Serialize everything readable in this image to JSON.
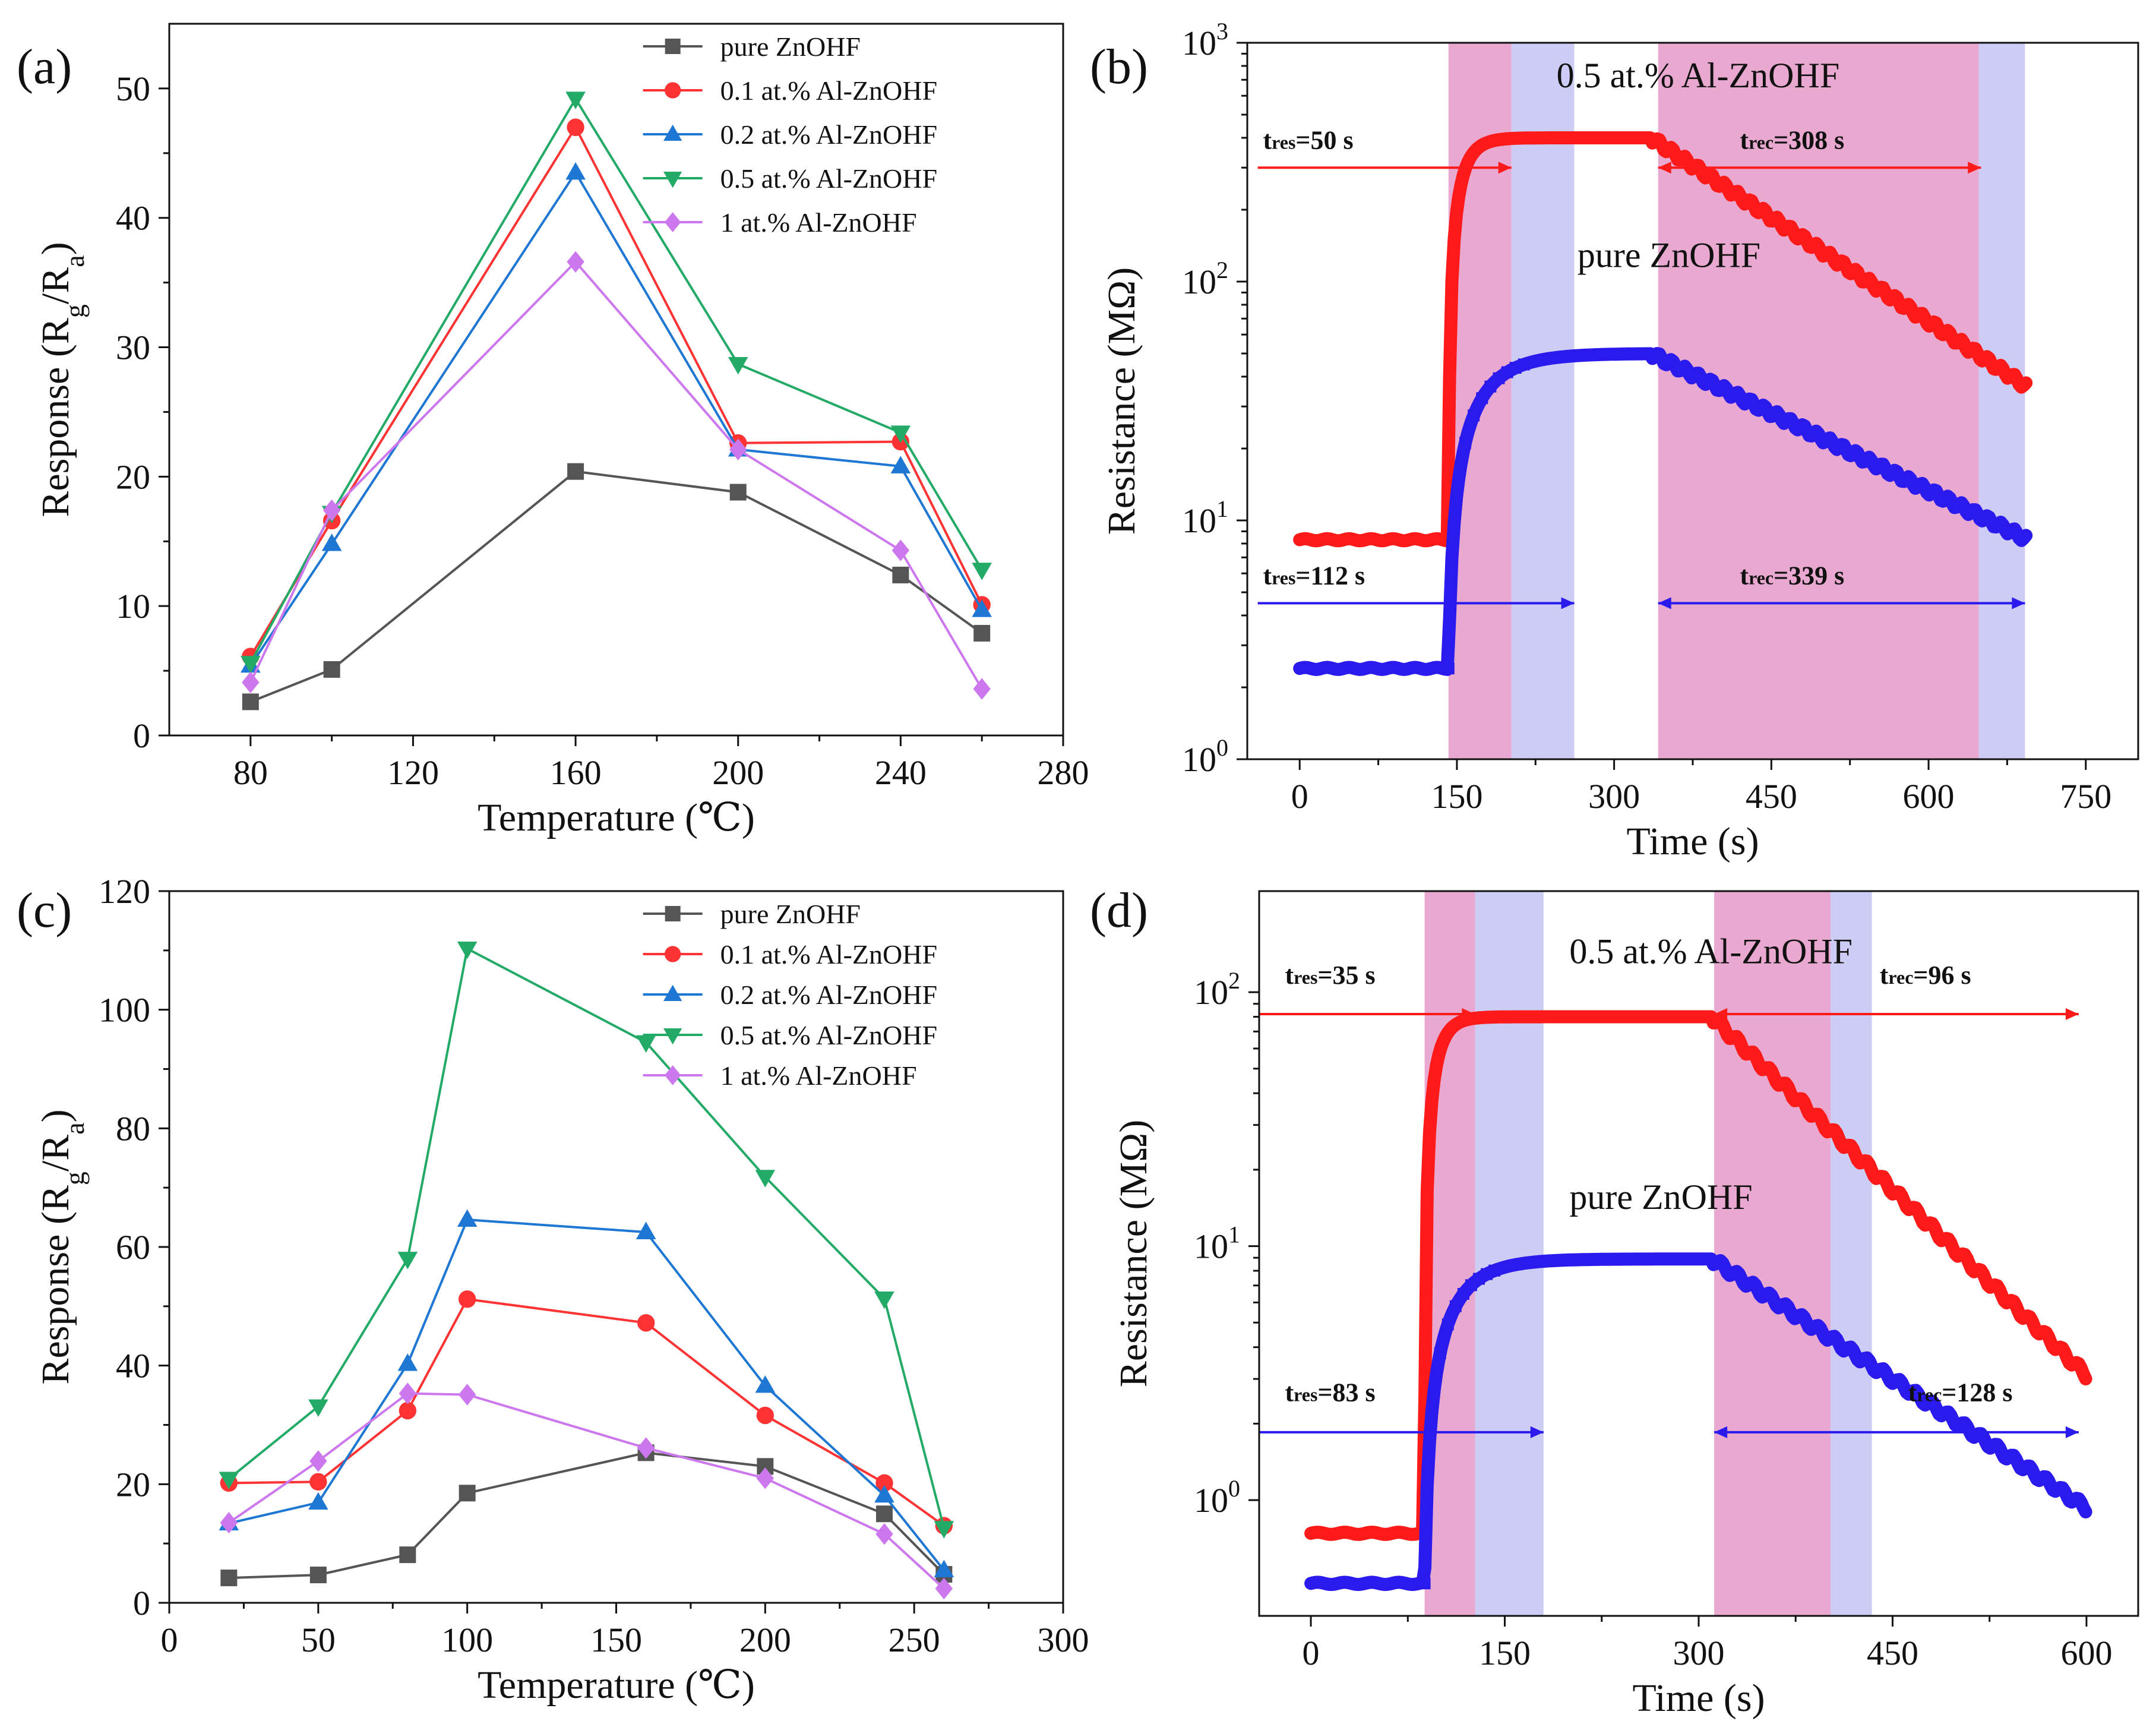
{
  "figure": {
    "panels": [
      {
        "id": "a",
        "label": "(a)"
      },
      {
        "id": "b",
        "label": "(b)"
      },
      {
        "id": "c",
        "label": "(c)"
      },
      {
        "id": "d",
        "label": "(d)"
      }
    ]
  },
  "colors": {
    "pure": "#555555",
    "al01": "#ff3333",
    "al02": "#1f77d4",
    "al05": "#22aa66",
    "al1": "#cc77ee",
    "red_curve": "#ff1a1a",
    "blue_curve": "#2a1aee",
    "pink_band": "#e8a8d0",
    "lavender_band": "#ccccf5"
  },
  "chart_data": [
    {
      "id": "a",
      "type": "line",
      "xlabel": "Temperature (℃)",
      "ylabel": "Response (Rg/Ra)",
      "ylabel_parts": {
        "main": "Response (R",
        "sub1": "g",
        "mid": "/R",
        "sub2": "a",
        "end": ")"
      },
      "xlim": [
        60,
        280
      ],
      "ylim": [
        0,
        55
      ],
      "xticks": [
        80,
        120,
        160,
        200,
        240,
        280
      ],
      "yticks": [
        0,
        10,
        20,
        30,
        40,
        50
      ],
      "grid": false,
      "legend_position": "top-right",
      "x": [
        80,
        100,
        160,
        200,
        240,
        260
      ],
      "series": [
        {
          "name": "pure ZnOHF",
          "marker": "square",
          "color_key": "pure",
          "values": [
            2.6,
            5.1,
            20.4,
            18.8,
            12.4,
            7.9
          ]
        },
        {
          "name": "0.1 at.% Al-ZnOHF",
          "marker": "circle",
          "color_key": "al01",
          "values": [
            6.1,
            16.6,
            47.0,
            22.6,
            22.7,
            10.1
          ]
        },
        {
          "name": "0.2 at.% Al-ZnOHF",
          "marker": "triangle-up",
          "color_key": "al02",
          "values": [
            5.4,
            14.8,
            43.5,
            22.1,
            20.8,
            9.7
          ]
        },
        {
          "name": "0.5 at.% Al-ZnOHF",
          "marker": "triangle-down",
          "color_key": "al05",
          "values": [
            5.6,
            17.2,
            49.2,
            28.7,
            23.4,
            12.8
          ]
        },
        {
          "name": "1 at.% Al-ZnOHF",
          "marker": "diamond",
          "color_key": "al1",
          "values": [
            4.1,
            17.4,
            36.6,
            22.1,
            14.3,
            3.6
          ]
        }
      ]
    },
    {
      "id": "b",
      "type": "line",
      "xlabel": "Time (s)",
      "ylabel": "Resistance (MΩ)",
      "xlim": [
        -50,
        800
      ],
      "ylog": true,
      "ylim": [
        1,
        1000
      ],
      "xticks": [
        0,
        150,
        300,
        450,
        600,
        750
      ],
      "yticks": [
        1,
        10,
        100,
        1000
      ],
      "ytick_labels": [
        {
          "base": "10",
          "exp": "0"
        },
        {
          "base": "10",
          "exp": "1"
        },
        {
          "base": "10",
          "exp": "2"
        },
        {
          "base": "10",
          "exp": "3"
        }
      ],
      "grid": false,
      "bands": [
        {
          "x0": 142,
          "x1": 202,
          "color_key": "pink_band"
        },
        {
          "x0": 202,
          "x1": 262,
          "color_key": "lavender_band"
        },
        {
          "x0": 342,
          "x1": 648,
          "color_key": "pink_band"
        },
        {
          "x0": 648,
          "x1": 692,
          "color_key": "lavender_band"
        }
      ],
      "curves": [
        {
          "name": "0.5 at.% Al-ZnOHF",
          "color_key": "red_curve",
          "base": 8.3,
          "peak": 400,
          "x_on": 142,
          "x_off": 335,
          "x_end": 695,
          "end": 36,
          "tau_rise": 12,
          "marker": "circle"
        },
        {
          "name": "pure ZnOHF",
          "color_key": "blue_curve",
          "base": 2.4,
          "peak": 50,
          "x_on": 142,
          "x_off": 335,
          "x_end": 695,
          "end": 8.3,
          "tau_rise": 32,
          "marker": "square"
        }
      ],
      "curve_labels": [
        {
          "text": "0.5 at.% Al-ZnOHF",
          "x": 245,
          "y": 650
        },
        {
          "text": "pure ZnOHF",
          "x": 265,
          "y": 115
        }
      ],
      "arrows": [
        {
          "text_main": "t",
          "text_sub": "res",
          "text_end": "=50 s",
          "x0": -40,
          "x1": 202,
          "y": 300,
          "color_key": "red_curve",
          "label_x": -35,
          "label_y": 360
        },
        {
          "text_main": "t",
          "text_sub": "rec",
          "text_end": "=308 s",
          "x0": 342,
          "x1": 650,
          "y": 300,
          "color_key": "red_curve",
          "label_x": 420,
          "label_y": 360
        },
        {
          "text_main": "t",
          "text_sub": "res",
          "text_end": "=112 s",
          "x0": -40,
          "x1": 262,
          "y": 4.5,
          "color_key": "blue_curve",
          "label_x": -35,
          "label_y": 5.4
        },
        {
          "text_main": "t",
          "text_sub": "rec",
          "text_end": "=339 s",
          "x0": 342,
          "x1": 692,
          "y": 4.5,
          "color_key": "blue_curve",
          "label_x": 420,
          "label_y": 5.4
        }
      ]
    },
    {
      "id": "c",
      "type": "line",
      "xlabel": "Temperature (℃)",
      "ylabel": "Response (Rg/Ra)",
      "ylabel_parts": {
        "main": "Response (R",
        "sub1": "g",
        "mid": "/R",
        "sub2": "a",
        "end": ")"
      },
      "xlim": [
        0,
        300
      ],
      "ylim": [
        0,
        120
      ],
      "xticks": [
        0,
        50,
        100,
        150,
        200,
        250,
        300
      ],
      "yticks": [
        0,
        20,
        40,
        60,
        80,
        100,
        120
      ],
      "grid": false,
      "legend_position": "top-right",
      "x": [
        20,
        50,
        80,
        100,
        160,
        200,
        240,
        260
      ],
      "series": [
        {
          "name": "pure ZnOHF",
          "marker": "square",
          "color_key": "pure",
          "values": [
            4.2,
            4.7,
            8.1,
            18.5,
            25.3,
            23.0,
            15.0,
            4.8
          ]
        },
        {
          "name": "0.1 at.% Al-ZnOHF",
          "marker": "circle",
          "color_key": "al01",
          "values": [
            20.2,
            20.4,
            32.4,
            51.2,
            47.2,
            31.6,
            20.2,
            13.0
          ]
        },
        {
          "name": "0.2 at.% Al-ZnOHF",
          "marker": "triangle-up",
          "color_key": "al02",
          "values": [
            13.4,
            16.9,
            40.3,
            64.6,
            62.5,
            36.6,
            18.1,
            5.5
          ]
        },
        {
          "name": "0.5 at.% Al-ZnOHF",
          "marker": "triangle-down",
          "color_key": "al05",
          "values": [
            20.9,
            33.1,
            58.0,
            110.3,
            94.5,
            71.8,
            51.3,
            12.6
          ]
        },
        {
          "name": "1 at.% Al-ZnOHF",
          "marker": "diamond",
          "color_key": "al1",
          "values": [
            13.5,
            23.9,
            35.3,
            35.1,
            26.1,
            21.0,
            11.6,
            2.4
          ]
        }
      ]
    },
    {
      "id": "d",
      "type": "line",
      "xlabel": "Time (s)",
      "ylabel": "Resistance (MΩ)",
      "xlim": [
        -40,
        640
      ],
      "ylog": true,
      "ylim": [
        0.35,
        250
      ],
      "xticks": [
        0,
        150,
        300,
        450,
        600
      ],
      "yticks": [
        1,
        10,
        100
      ],
      "ytick_labels": [
        {
          "base": "10",
          "exp": "0"
        },
        {
          "base": "10",
          "exp": "1"
        },
        {
          "base": "10",
          "exp": "2"
        }
      ],
      "grid": false,
      "bands": [
        {
          "x0": 88,
          "x1": 127,
          "color_key": "pink_band"
        },
        {
          "x0": 127,
          "x1": 180,
          "color_key": "lavender_band"
        },
        {
          "x0": 312,
          "x1": 402,
          "color_key": "pink_band"
        },
        {
          "x0": 402,
          "x1": 434,
          "color_key": "lavender_band"
        }
      ],
      "curves": [
        {
          "name": "0.5 at.% Al-ZnOHF",
          "color_key": "red_curve",
          "base": 0.74,
          "peak": 80,
          "x_on": 88,
          "x_off": 310,
          "x_end": 600,
          "end": 3.1,
          "tau_rise": 9,
          "marker": "circle"
        },
        {
          "name": "pure ZnOHF",
          "color_key": "blue_curve",
          "base": 0.47,
          "peak": 8.9,
          "x_on": 88,
          "x_off": 310,
          "x_end": 600,
          "end": 0.93,
          "tau_rise": 24,
          "marker": "square"
        }
      ],
      "curve_labels": [
        {
          "text": "0.5 at.% Al-ZnOHF",
          "x": 200,
          "y": 130
        },
        {
          "text": "pure ZnOHF",
          "x": 200,
          "y": 14
        }
      ],
      "arrows": [
        {
          "text_main": "t",
          "text_sub": "res",
          "text_end": "=35 s",
          "x0": -40,
          "x1": 127,
          "y": 82,
          "color_key": "red_curve",
          "label_x": -20,
          "label_y": 108
        },
        {
          "text_main": "t",
          "text_sub": "rec",
          "text_end": "=96 s",
          "x0": 312,
          "x1": 594,
          "y": 82,
          "color_key": "red_curve",
          "label_x": 440,
          "label_y": 108
        },
        {
          "text_main": "t",
          "text_sub": "res",
          "text_end": "=83 s",
          "x0": -40,
          "x1": 180,
          "y": 1.85,
          "color_key": "blue_curve",
          "label_x": -20,
          "label_y": 2.45
        },
        {
          "text_main": "t",
          "text_sub": "rec",
          "text_end": "=128 s",
          "x0": 312,
          "x1": 594,
          "y": 1.85,
          "color_key": "blue_curve",
          "label_x": 462,
          "label_y": 2.45
        }
      ]
    }
  ]
}
